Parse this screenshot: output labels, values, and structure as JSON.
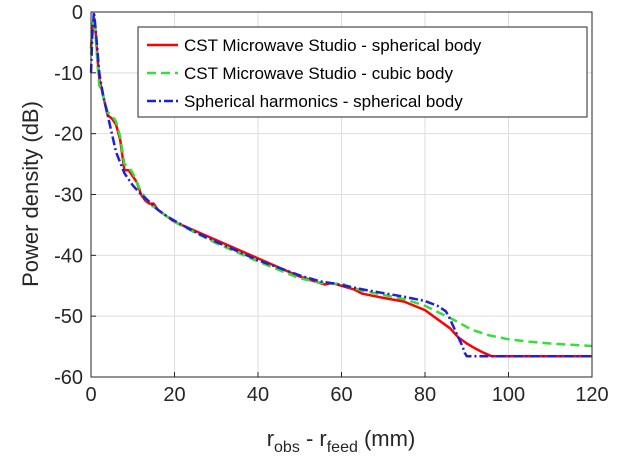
{
  "chart_data": {
    "type": "line",
    "title": "",
    "xlabel": {
      "main": "r",
      "sub1": "obs",
      "mid": " - r",
      "sub2": "feed",
      "tail": " (mm)"
    },
    "ylabel": "Power density (dB)",
    "xlim": [
      0,
      120
    ],
    "ylim": [
      -60,
      0
    ],
    "xticks": [
      0,
      20,
      40,
      60,
      80,
      100,
      120
    ],
    "yticks": [
      0,
      -10,
      -20,
      -30,
      -40,
      -50,
      -60
    ],
    "xtick_labels": [
      "0",
      "20",
      "40",
      "60",
      "80",
      "100",
      "120"
    ],
    "ytick_labels": [
      "0",
      "-10",
      "-20",
      "-30",
      "-40",
      "-50",
      "-60"
    ],
    "grid": true,
    "legend_position": "top-right",
    "series": [
      {
        "name": "CST Microwave Studio - spherical body",
        "color": "#ff0000",
        "dash": "solid",
        "x": [
          0,
          0.4,
          0.8,
          1.2,
          1.6,
          2,
          3,
          4,
          5,
          6,
          7,
          8,
          9,
          10,
          11,
          12,
          13,
          14,
          15,
          16,
          18,
          20,
          25,
          30,
          40,
          50,
          56,
          58,
          60,
          63,
          65,
          70,
          75,
          80,
          83,
          86,
          88,
          90,
          92,
          94,
          96,
          97,
          100,
          110,
          120
        ],
        "y": [
          -6,
          -2,
          -1,
          -4,
          -8,
          -11,
          -14,
          -17,
          -17.5,
          -18.5,
          -21,
          -26,
          -26,
          -27,
          -28,
          -30,
          -31,
          -31.5,
          -31.5,
          -32.5,
          -33.5,
          -34.5,
          -36,
          -37.5,
          -40.5,
          -43.5,
          -44.8,
          -44.6,
          -45,
          -45.6,
          -46.3,
          -47,
          -47.6,
          -49,
          -50.5,
          -52,
          -53.5,
          -54.5,
          -55.3,
          -56,
          -56.6,
          -56.6,
          -56.6,
          -56.6,
          -56.6
        ]
      },
      {
        "name": "CST Microwave Studio - cubic body",
        "color": "#33e033",
        "dash": "dashed",
        "x": [
          0,
          0.4,
          0.8,
          1.2,
          1.6,
          2,
          3,
          4,
          5,
          6,
          7,
          8,
          9,
          10,
          11,
          12,
          13,
          14,
          15,
          16,
          18,
          20,
          25,
          30,
          40,
          50,
          55,
          58,
          60,
          62,
          65,
          70,
          75,
          80,
          83,
          86,
          88,
          90,
          92,
          95,
          100,
          105,
          110,
          115,
          120
        ],
        "y": [
          -7,
          -2,
          -1,
          -5,
          -9,
          -12,
          -14,
          -16.5,
          -17,
          -18,
          -20.5,
          -25,
          -25.5,
          -26.5,
          -28,
          -29.5,
          -30.5,
          -31.5,
          -32,
          -32.5,
          -33.5,
          -34.5,
          -36.3,
          -38,
          -41,
          -43.8,
          -44.5,
          -44.7,
          -44.6,
          -45.2,
          -45.8,
          -46.5,
          -47.2,
          -48.3,
          -49.3,
          -50.3,
          -51,
          -51.8,
          -52.4,
          -53.1,
          -53.8,
          -54.2,
          -54.5,
          -54.7,
          -54.9
        ]
      },
      {
        "name": "Spherical harmonics - spherical body",
        "color": "#1f1fd6",
        "dash": "dashdot",
        "x": [
          0,
          0.3,
          0.7,
          1,
          1.5,
          2,
          3,
          4,
          5,
          6,
          8,
          10,
          12,
          14,
          16,
          18,
          20,
          25,
          30,
          40,
          50,
          55,
          58,
          60,
          63,
          65,
          70,
          75,
          80,
          83,
          85,
          86,
          87,
          88,
          89,
          89.5,
          90,
          92,
          95,
          100,
          105,
          110,
          115,
          120
        ],
        "y": [
          -10,
          -4,
          0,
          -2,
          -6,
          -10,
          -14,
          -17,
          -20,
          -23,
          -26.5,
          -28.5,
          -30,
          -31.2,
          -32.5,
          -33.5,
          -34.3,
          -36.2,
          -37.8,
          -40.8,
          -43.3,
          -44.3,
          -44.6,
          -44.9,
          -45.3,
          -45.6,
          -46.2,
          -46.8,
          -47.5,
          -48.3,
          -49.2,
          -50.5,
          -52,
          -53.5,
          -55,
          -56,
          -56.6,
          -56.6,
          -56.6,
          -56.6,
          -56.6,
          -56.6,
          -56.6,
          -56.6
        ]
      }
    ]
  }
}
